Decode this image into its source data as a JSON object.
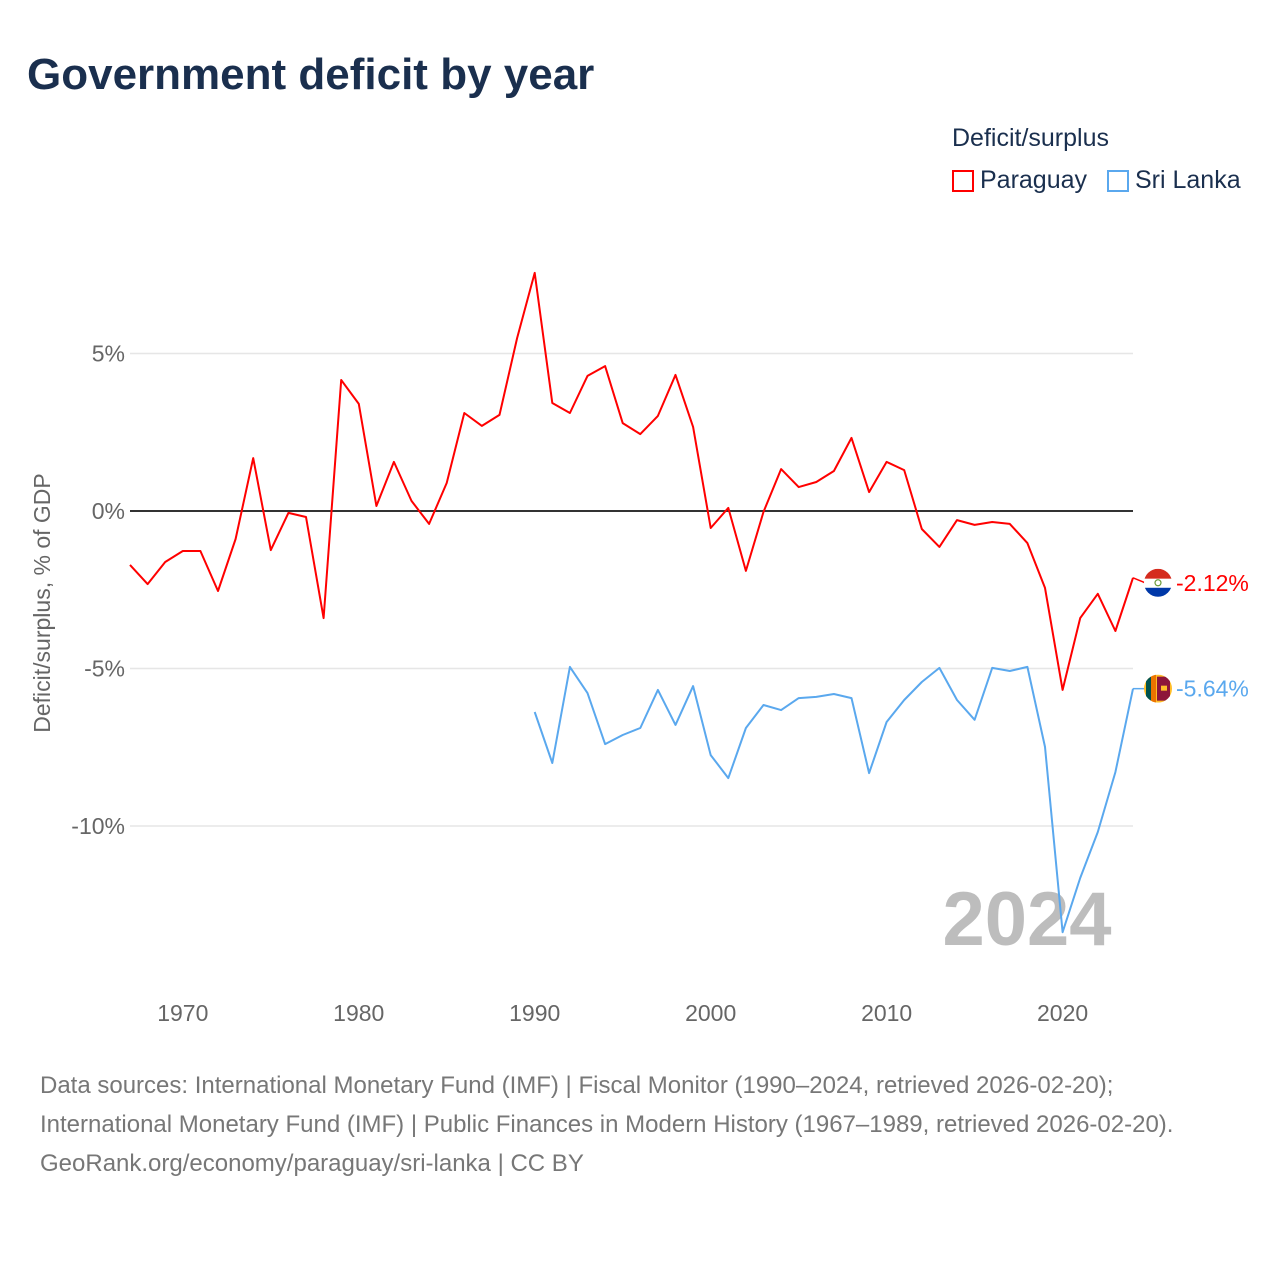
{
  "chart_data": {
    "type": "line",
    "title": "Government deficit by year",
    "ylabel": "Deficit/surplus, % of GDP",
    "xlabel": "",
    "xlim": [
      1967,
      2024
    ],
    "ylim": [
      -14,
      8
    ],
    "x_ticks": [
      "1970",
      "1980",
      "1990",
      "2000",
      "2010",
      "2020"
    ],
    "y_ticks": [
      {
        "value": 5,
        "label": "5%"
      },
      {
        "value": 0,
        "label": "0%"
      },
      {
        "value": -5,
        "label": "-5%"
      },
      {
        "value": -10,
        "label": "-10%"
      }
    ],
    "grid": true,
    "legend_title": "Deficit/surplus",
    "legend_position": "top-right",
    "year_watermark": "2024",
    "series": [
      {
        "name": "Paraguay",
        "color": "#ff0000",
        "end_label": "-2.12%",
        "start_year": 1967,
        "values": [
          -1.71,
          -2.32,
          -1.62,
          -1.27,
          -1.27,
          -2.54,
          -0.89,
          1.68,
          -1.24,
          -0.06,
          -0.19,
          -3.4,
          4.16,
          3.4,
          0.16,
          1.56,
          0.32,
          -0.41,
          0.89,
          3.11,
          2.7,
          3.05,
          5.49,
          7.56,
          3.43,
          3.11,
          4.29,
          4.6,
          2.79,
          2.44,
          3.02,
          4.32,
          2.67,
          -0.54,
          0.1,
          -1.9,
          -0.03,
          1.33,
          0.76,
          0.92,
          1.27,
          2.32,
          0.6,
          1.56,
          1.3,
          -0.57,
          -1.14,
          -0.29,
          -0.44,
          -0.35,
          -0.41,
          -1.02,
          -2.44,
          -5.68,
          -3.4,
          -2.63,
          -3.81,
          -2.12
        ]
      },
      {
        "name": "Sri Lanka",
        "color": "#5aa8ee",
        "end_label": "-5.64%",
        "start_year": 1990,
        "values": [
          -6.38,
          -8.0,
          -4.95,
          -5.78,
          -7.4,
          -7.11,
          -6.89,
          -5.68,
          -6.79,
          -5.56,
          -7.75,
          -8.48,
          -6.89,
          -6.16,
          -6.32,
          -5.94,
          -5.9,
          -5.81,
          -5.94,
          -8.32,
          -6.7,
          -6.0,
          -5.43,
          -4.98,
          -6.0,
          -6.63,
          -4.98,
          -5.08,
          -4.95,
          -7.49,
          -13.37,
          -11.65,
          -10.19,
          -8.29,
          -5.64
        ]
      }
    ]
  },
  "footer": {
    "sources": "Data sources: International Monetary Fund (IMF) | Fiscal Monitor (1990–2024, retrieved 2026-02-20); International Monetary Fund (IMF) | Public Finances in Modern History (1967–1989, retrieved 2026-02-20).",
    "link": "GeoRank.org/economy/paraguay/sri-lanka | CC BY"
  }
}
